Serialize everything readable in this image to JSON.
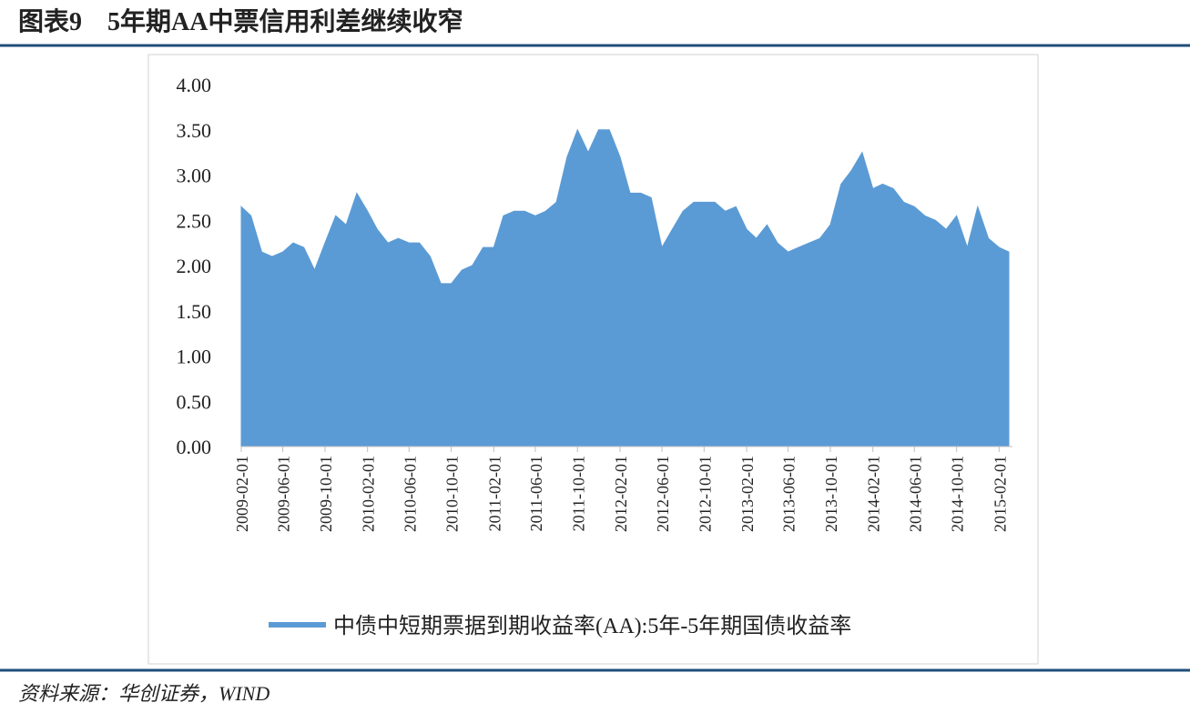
{
  "chart_data": {
    "type": "area",
    "title": "图表9　5年期AA中票信用利差继续收窄",
    "source": "资料来源：华创证券，WIND",
    "x": [
      "2009-02-01",
      "2009-03-01",
      "2009-04-01",
      "2009-05-01",
      "2009-06-01",
      "2009-07-01",
      "2009-08-01",
      "2009-09-01",
      "2009-10-01",
      "2009-11-01",
      "2009-12-01",
      "2010-01-01",
      "2010-02-01",
      "2010-03-01",
      "2010-04-01",
      "2010-05-01",
      "2010-06-01",
      "2010-07-01",
      "2010-08-01",
      "2010-09-01",
      "2010-10-01",
      "2010-11-01",
      "2010-12-01",
      "2011-01-01",
      "2011-02-01",
      "2011-03-01",
      "2011-04-01",
      "2011-05-01",
      "2011-06-01",
      "2011-07-01",
      "2011-08-01",
      "2011-09-01",
      "2011-10-01",
      "2011-11-01",
      "2011-12-01",
      "2012-01-01",
      "2012-02-01",
      "2012-03-01",
      "2012-04-01",
      "2012-05-01",
      "2012-06-01",
      "2012-07-01",
      "2012-08-01",
      "2012-09-01",
      "2012-10-01",
      "2012-11-01",
      "2012-12-01",
      "2013-01-01",
      "2013-02-01",
      "2013-03-01",
      "2013-04-01",
      "2013-05-01",
      "2013-06-01",
      "2013-07-01",
      "2013-08-01",
      "2013-09-01",
      "2013-10-01",
      "2013-11-01",
      "2013-12-01",
      "2014-01-01",
      "2014-02-01",
      "2014-03-01",
      "2014-04-01",
      "2014-05-01",
      "2014-06-01",
      "2014-07-01",
      "2014-08-01",
      "2014-09-01",
      "2014-10-01",
      "2014-11-01",
      "2014-12-01",
      "2015-01-01",
      "2015-02-01",
      "2015-03-01"
    ],
    "series": [
      {
        "name": "中债中短期票据到期收益率(AA):5年-5年期国债收益率",
        "color": "#5b9bd5",
        "values": [
          2.65,
          2.55,
          2.15,
          2.1,
          2.15,
          2.25,
          2.2,
          1.95,
          2.25,
          2.55,
          2.45,
          2.8,
          2.6,
          2.4,
          2.25,
          2.3,
          2.25,
          2.25,
          2.1,
          1.8,
          1.8,
          1.95,
          2.0,
          2.2,
          2.2,
          2.55,
          2.6,
          2.6,
          2.55,
          2.6,
          2.7,
          3.2,
          3.5,
          3.25,
          3.5,
          3.5,
          3.2,
          2.8,
          2.8,
          2.75,
          2.2,
          2.4,
          2.6,
          2.7,
          2.7,
          2.7,
          2.6,
          2.65,
          2.4,
          2.3,
          2.45,
          2.25,
          2.15,
          2.2,
          2.25,
          2.3,
          2.45,
          2.9,
          3.05,
          3.25,
          2.85,
          2.9,
          2.85,
          2.7,
          2.65,
          2.55,
          2.5,
          2.4,
          2.55,
          2.2,
          2.65,
          2.3,
          2.2,
          2.15
        ]
      }
    ],
    "xlim": [
      "2009-02-01",
      "2015-03-01"
    ],
    "xticks": [
      "2009-02-01",
      "2009-06-01",
      "2009-10-01",
      "2010-02-01",
      "2010-06-01",
      "2010-10-01",
      "2011-02-01",
      "2011-06-01",
      "2011-10-01",
      "2012-02-01",
      "2012-06-01",
      "2012-10-01",
      "2013-02-01",
      "2013-06-01",
      "2013-10-01",
      "2014-02-01",
      "2014-06-01",
      "2014-10-01",
      "2015-02-01"
    ],
    "ylim": [
      0,
      4
    ],
    "yticks": [
      {
        "value": 0,
        "label": "0.00"
      },
      {
        "value": 0.5,
        "label": "0.50"
      },
      {
        "value": 1,
        "label": "1.00"
      },
      {
        "value": 1.5,
        "label": "1.50"
      },
      {
        "value": 2,
        "label": "2.00"
      },
      {
        "value": 2.5,
        "label": "2.50"
      },
      {
        "value": 3,
        "label": "3.00"
      },
      {
        "value": 3.5,
        "label": "3.50"
      },
      {
        "value": 4,
        "label": "4.00"
      }
    ],
    "legend": "bottom"
  }
}
